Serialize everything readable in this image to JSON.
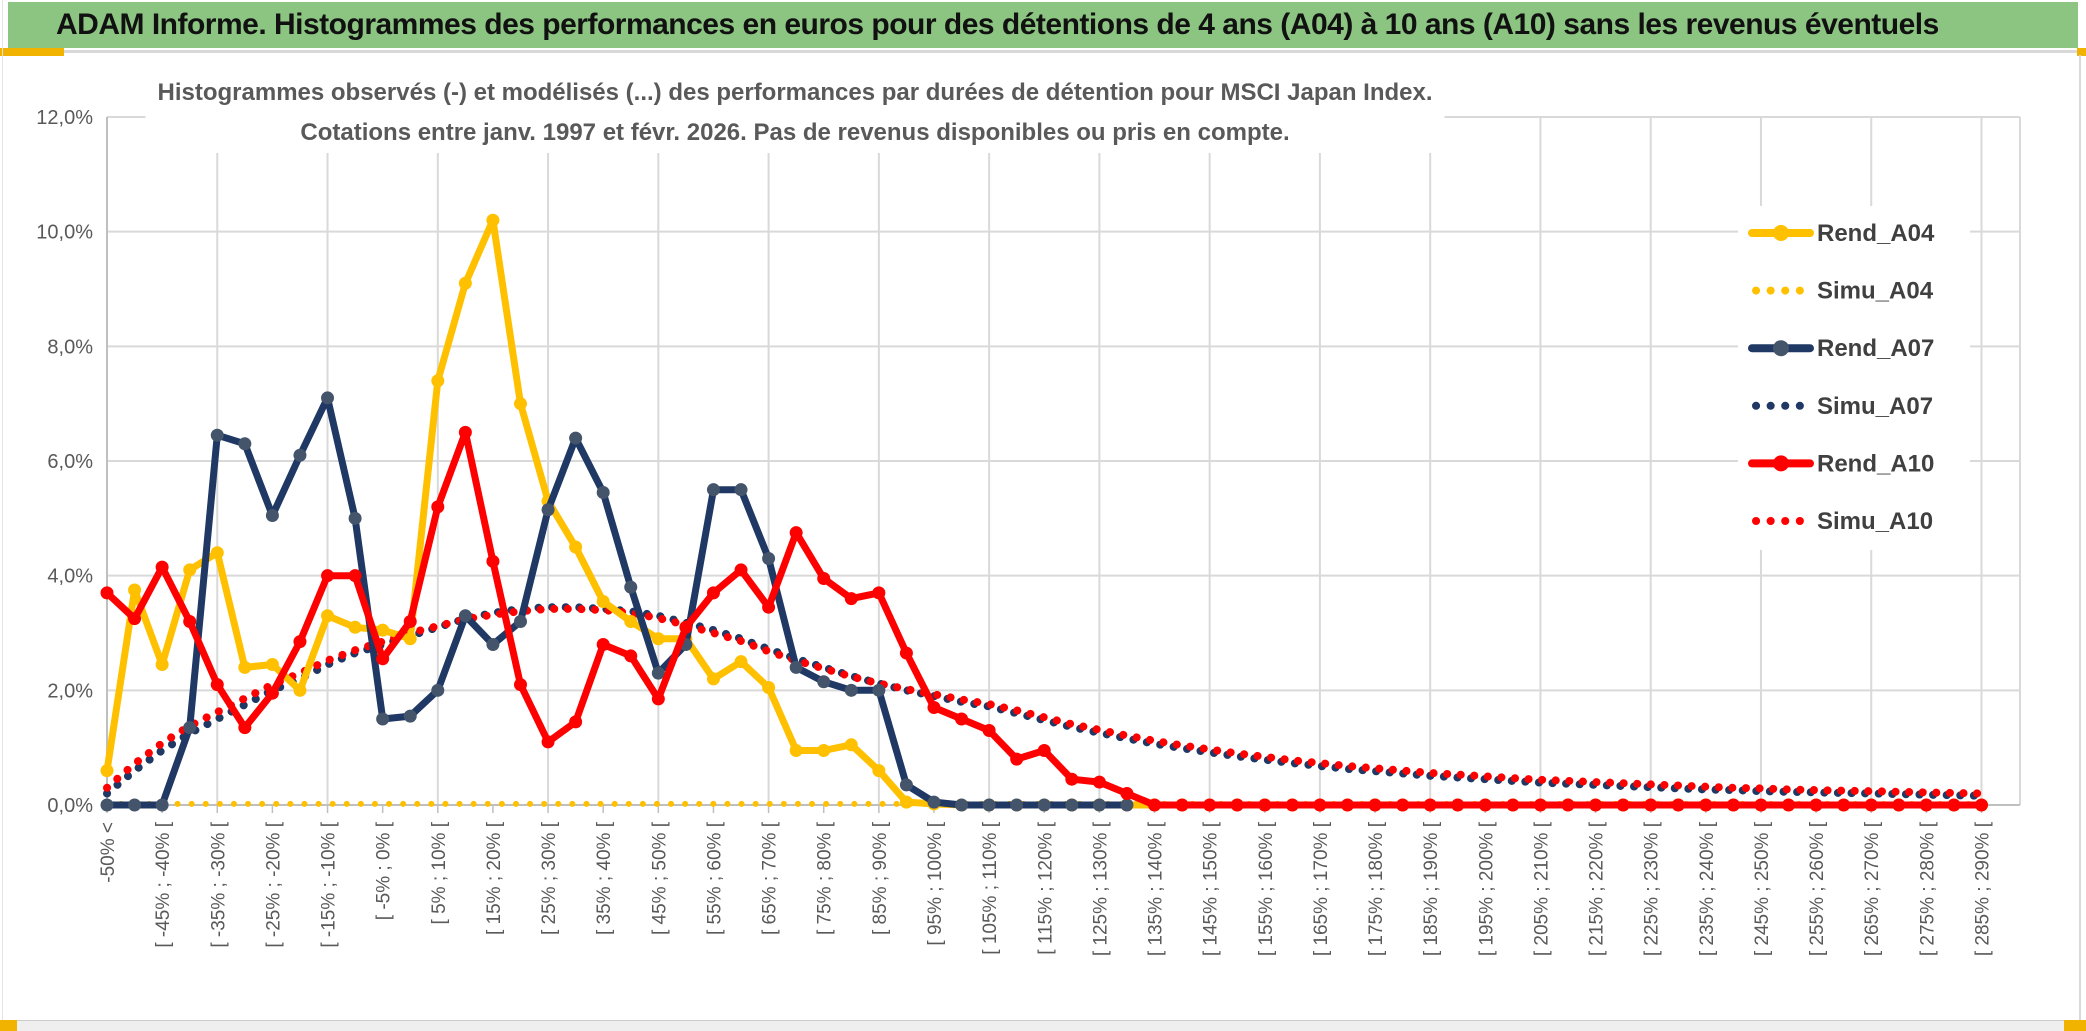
{
  "header": {
    "title": "ADAM Informe. Histogrammes des performances en euros pour des détentions de 4 ans (A04) à 10 ans (A10) sans les revenus éventuels"
  },
  "colors": {
    "banner_green": "#8CC481",
    "accent_gold": "#F2B200",
    "grid": "#D9D9D9",
    "axis": "#BFBFBF",
    "text_gray": "#595959",
    "legend_text": "#404040",
    "series_gold": "#FFC000",
    "series_navy": "#1F3864",
    "series_navy_marker": "#44546A",
    "series_red": "#FF0000"
  },
  "chart_data": {
    "type": "line",
    "title_line1": "Histogrammes observés (-) et modélisés (...) des performances par durées de détention pour MSCI Japan Index.",
    "title_line2": "Cotations entre janv. 1997 et févr. 2026. Pas de revenus disponibles ou pris en compte.",
    "ylabel": "",
    "xlabel": "",
    "ylim": [
      0,
      12
    ],
    "y_tick_step_pct": 2,
    "y_tick_labels": [
      "0,0%",
      "2,0%",
      "4,0%",
      "6,0%",
      "8,0%",
      "10,0%",
      "12,0%"
    ],
    "grid": true,
    "n_points": 69,
    "x_label_every": 2,
    "x_gridline_every": 4,
    "x_tick_labels": [
      "-50% <",
      "[ -45% ; -40% [",
      "[ -35% ; -30% [",
      "[ -25% ; -20% [",
      "[ -15% ; -10% [",
      "[ -5% ; 0% [",
      "[ 5% ; 10% [",
      "[ 15% ; 20% [",
      "[ 25% ; 30% [",
      "[ 35% ; 40% [",
      "[ 45% ; 50% [",
      "[ 55% ; 60% [",
      "[ 65% ; 70% [",
      "[ 75% ; 80% [",
      "[ 85% ; 90% [",
      "[ 95% ; 100% [",
      "[ 105% ; 110% [",
      "[ 115% ; 120% [",
      "[ 125% ; 130% [",
      "[ 135% ; 140% [",
      "[ 145% ; 150% [",
      "[ 155% ; 160% [",
      "[ 165% ; 170% [",
      "[ 175% ; 180% [",
      "[ 185% ; 190% [",
      "[ 195% ; 200% [",
      "[ 205% ; 210% [",
      "[ 215% ; 220% [",
      "[ 225% ; 230% [",
      "[ 235% ; 240% [",
      "[ 245% ; 250% [",
      "[ 255% ; 260% [",
      "[ 265% ; 270% [",
      "[ 275% ; 280% [",
      "[ 285% ; 290% ["
    ],
    "legend_position": "right",
    "series": [
      {
        "name": "Simu_A04",
        "style": "dotted",
        "color": "#FFC000",
        "marker_color": "#FFC000",
        "values": [
          0.02,
          0.02,
          0.02,
          0.02,
          0.02,
          0.02,
          0.02,
          0.02,
          0.02,
          0.02,
          0.02,
          0.02,
          0.02,
          0.02,
          0.02,
          0.02,
          0.02,
          0.02,
          0.02,
          0.02,
          0.02,
          0.02,
          0.02,
          0.02,
          0.02,
          0.02,
          0.02,
          0.02,
          0.02,
          0.02,
          0.02,
          0.02,
          0.02,
          0.02,
          0.02,
          0.02,
          0.02,
          0.02,
          0.02,
          0.02,
          0.02,
          0.02,
          0.02,
          0.02,
          0.02,
          0.02,
          0.02,
          0.02,
          0.02,
          0.02,
          0.02,
          0.02,
          0.02,
          0.02,
          0.02,
          0.02,
          0.02,
          0.02,
          0.02,
          0.02,
          0.02,
          0.02,
          0.02,
          0.02,
          0.02,
          0.02,
          0.02,
          0.02,
          0.02
        ]
      },
      {
        "name": "Simu_A07",
        "style": "dotted",
        "color": "#1F3864",
        "marker_color": "#1F3864",
        "values": [
          0.2,
          0.6,
          0.95,
          1.25,
          1.5,
          1.75,
          2.0,
          2.2,
          2.45,
          2.65,
          2.8,
          2.95,
          3.1,
          3.25,
          3.35,
          3.42,
          3.45,
          3.45,
          3.42,
          3.38,
          3.3,
          3.18,
          3.05,
          2.9,
          2.72,
          2.55,
          2.4,
          2.25,
          2.12,
          2.0,
          1.9,
          1.8,
          1.72,
          1.6,
          1.48,
          1.36,
          1.26,
          1.16,
          1.07,
          0.99,
          0.92,
          0.85,
          0.79,
          0.73,
          0.68,
          0.63,
          0.59,
          0.55,
          0.51,
          0.48,
          0.45,
          0.42,
          0.39,
          0.37,
          0.35,
          0.33,
          0.31,
          0.29,
          0.27,
          0.26,
          0.24,
          0.23,
          0.22,
          0.21,
          0.2,
          0.19,
          0.18,
          0.17,
          0.16
        ]
      },
      {
        "name": "Simu_A10",
        "style": "dotted",
        "color": "#FF0000",
        "marker_color": "#FF0000",
        "values": [
          0.3,
          0.72,
          1.08,
          1.38,
          1.62,
          1.86,
          2.1,
          2.3,
          2.52,
          2.7,
          2.85,
          3.0,
          3.12,
          3.24,
          3.32,
          3.38,
          3.42,
          3.42,
          3.4,
          3.35,
          3.26,
          3.14,
          3.0,
          2.86,
          2.68,
          2.52,
          2.38,
          2.24,
          2.12,
          2.02,
          1.93,
          1.84,
          1.76,
          1.65,
          1.53,
          1.41,
          1.31,
          1.21,
          1.12,
          1.04,
          0.97,
          0.9,
          0.84,
          0.78,
          0.73,
          0.68,
          0.64,
          0.6,
          0.56,
          0.53,
          0.5,
          0.47,
          0.44,
          0.42,
          0.4,
          0.38,
          0.36,
          0.34,
          0.32,
          0.3,
          0.29,
          0.27,
          0.26,
          0.25,
          0.24,
          0.23,
          0.22,
          0.21,
          0.2
        ]
      },
      {
        "name": "Rend_A04",
        "style": "solid",
        "color": "#FFC000",
        "marker_color": "#FFC000",
        "values": [
          0.6,
          3.75,
          2.45,
          4.1,
          4.4,
          2.4,
          2.45,
          2.0,
          3.3,
          3.1,
          3.05,
          2.9,
          7.4,
          9.1,
          10.2,
          7.0,
          5.3,
          4.5,
          3.55,
          3.2,
          2.9,
          2.9,
          2.2,
          2.5,
          2.05,
          0.95,
          0.95,
          1.05,
          0.6,
          0.05,
          0.02,
          0,
          0,
          0,
          0,
          0,
          0,
          0,
          0,
          0,
          0,
          0,
          0,
          0,
          0,
          0,
          0,
          0,
          0,
          0,
          0,
          0,
          0,
          0,
          0,
          0,
          0,
          0,
          0,
          0,
          0,
          0,
          0,
          0,
          0,
          0,
          0,
          0,
          0
        ]
      },
      {
        "name": "Rend_A07",
        "style": "solid",
        "color": "#1F3864",
        "marker_color": "#44546A",
        "values": [
          0,
          0,
          0,
          1.35,
          6.45,
          6.3,
          5.05,
          6.1,
          7.1,
          5.0,
          1.5,
          1.55,
          2.0,
          3.3,
          2.8,
          3.2,
          5.15,
          6.4,
          5.45,
          3.8,
          2.3,
          2.8,
          5.5,
          5.5,
          4.3,
          2.4,
          2.15,
          2.0,
          2.0,
          0.35,
          0.05,
          0,
          0,
          0,
          0,
          0,
          0,
          0,
          null,
          null,
          null,
          null,
          null,
          null,
          null,
          null,
          null,
          null,
          null,
          null,
          null,
          null,
          null,
          null,
          null,
          null,
          null,
          null,
          null,
          null,
          null,
          null,
          null,
          null,
          null,
          null,
          null,
          null,
          null
        ]
      },
      {
        "name": "Rend_A10",
        "style": "solid",
        "color": "#FF0000",
        "marker_color": "#FF0000",
        "values": [
          3.7,
          3.25,
          4.15,
          3.2,
          2.1,
          1.35,
          1.95,
          2.85,
          4.0,
          4.0,
          2.55,
          3.2,
          5.2,
          6.5,
          4.25,
          2.1,
          1.1,
          1.45,
          2.8,
          2.6,
          1.85,
          3.1,
          3.7,
          4.1,
          3.45,
          4.75,
          3.95,
          3.6,
          3.7,
          2.65,
          1.7,
          1.5,
          1.3,
          0.8,
          0.95,
          0.45,
          0.4,
          0.2,
          0,
          0,
          0,
          0,
          0,
          0,
          0,
          0,
          0,
          0,
          0,
          0,
          0,
          0,
          0,
          0,
          0,
          0,
          0,
          0,
          0,
          0,
          0,
          0,
          0,
          0,
          0,
          0,
          0,
          0,
          0
        ]
      }
    ],
    "legend_entries": [
      "Rend_A04",
      "Simu_A04",
      "Rend_A07",
      "Simu_A07",
      "Rend_A10",
      "Simu_A10"
    ]
  }
}
